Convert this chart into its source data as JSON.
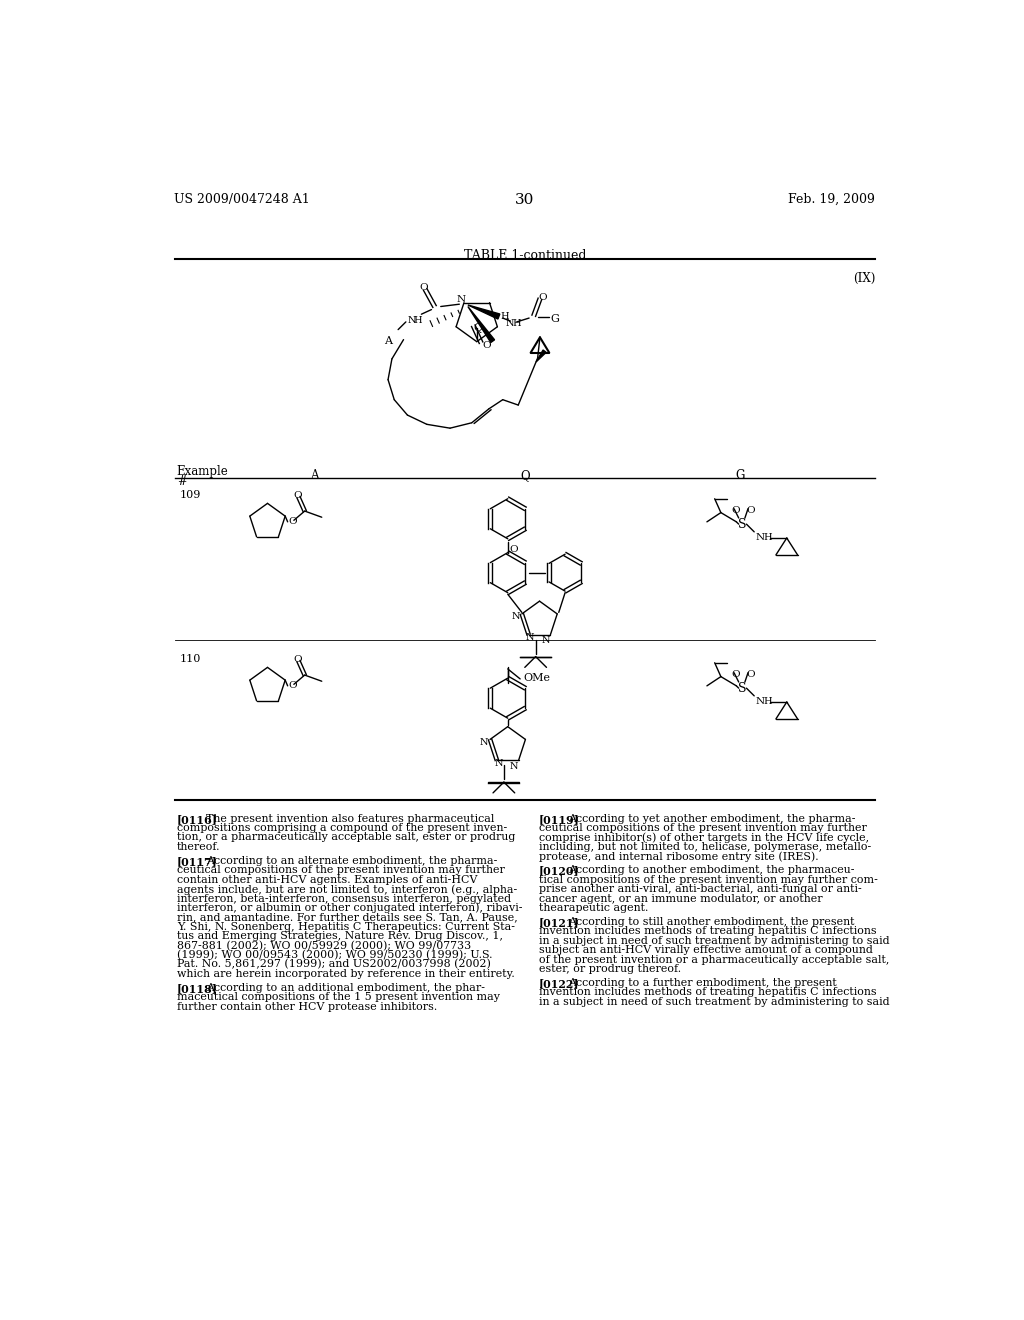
{
  "page_number": "30",
  "patent_left": "US 2009/0047248 A1",
  "patent_right": "Feb. 19, 2009",
  "table_title": "TABLE 1-continued",
  "compound_label": "(IX)",
  "paragraphs_left": [
    {
      "tag": "[0116]",
      "text": "The present invention also features pharmaceutical\ncompositions comprising a compound of the present inven-\ntion, or a pharmaceutically acceptable salt, ester or prodrug\nthereof."
    },
    {
      "tag": "[0117]",
      "text": "According to an alternate embodiment, the pharma-\nceutical compositions of the present invention may further\ncontain other anti-HCV agents. Examples of anti-HCV\nagents include, but are not limited to, interferon (e.g., alpha-\ninterferon, beta-interferon, consensus interferon, pegylated\ninterferon, or albumin or other conjugated interferon), ribavi-\nrin, and amantadine. For further details see S. Tan, A. Pause,\nY. Shi, N. Sonenberg, Hepatitis C Therapeutics: Current Sta-\ntus and Emerging Strategies, Nature Rev. Drug Discov., 1,\n867-881 (2002); WO 00/59929 (2000); WO 99/07733\n(1999); WO 00/09543 (2000); WO 99/50230 (1999); U.S.\nPat. No. 5,861,297 (1999); and US2002/0037998 (2002)\nwhich are herein incorporated by reference in their entirety."
    },
    {
      "tag": "[0118]",
      "text": "According to an additional embodiment, the phar-\nmaceutical compositions of the 1 5 present invention may\nfurther contain other HCV protease inhibitors."
    }
  ],
  "paragraphs_right": [
    {
      "tag": "[0119]",
      "text": "According to yet another embodiment, the pharma-\nceutical compositions of the present invention may further\ncomprise inhibitor(s) of other targets in the HCV life cycle,\nincluding, but not limited to, helicase, polymerase, metallo-\nprotease, and internal ribosome entry site (IRES)."
    },
    {
      "tag": "[0120]",
      "text": "According to another embodiment, the pharmaceu-\ntical compositions of the present invention may further com-\nprise another anti-viral, anti-bacterial, anti-fungal or anti-\ncancer agent, or an immune modulator, or another\nthearapeutic agent."
    },
    {
      "tag": "[0121]",
      "text": "According to still another embodiment, the present\ninvention includes methods of treating hepatitis C infections\nin a subject in need of such treatment by administering to said\nsubject an anti-HCV virally effective amount of a compound\nof the present invention or a pharmaceutically acceptable salt,\nester, or prodrug thereof."
    },
    {
      "tag": "[0122]",
      "text": "According to a further embodiment, the present\ninvention includes methods of treating hepatitis C infections\nin a subject in need of such treatment by administering to said"
    }
  ],
  "bg_color": "#ffffff"
}
